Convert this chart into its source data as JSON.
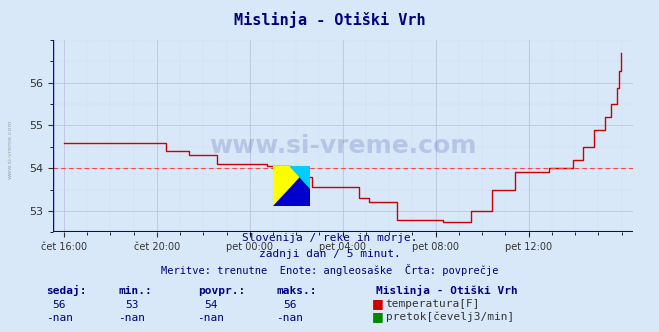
{
  "title": "Mislinja - Otiški Vrh",
  "title_color": "#000080",
  "bg_color": "#d8e8f8",
  "plot_bg_color": "#d8e8f8",
  "line_color": "#cc0000",
  "avg_line_color": "#ff4444",
  "avg_value": 54.0,
  "x_labels": [
    "čet 16:00",
    "čet 20:00",
    "pet 00:00",
    "pet 04:00",
    "pet 08:00",
    "pet 12:00"
  ],
  "x_ticks_norm": [
    0.0,
    0.1667,
    0.3333,
    0.5,
    0.6667,
    0.8333
  ],
  "ylim": [
    52.5,
    57.0
  ],
  "yticks": [
    53,
    54,
    55,
    56
  ],
  "grid_color": "#bbbbdd",
  "axis_color": "#0000cc",
  "watermark_text": "www.si-vreme.com",
  "subtitle1": "Slovenija / reke in morje.",
  "subtitle2": "zadnji dan / 5 minut.",
  "subtitle3": "Meritve: trenutne  Enote: angleosaške  Črta: povprečje",
  "subtitle_color": "#000080",
  "legend_title": "Mislinja - Otiški Vrh",
  "stat_labels": [
    "sedaj:",
    "min.:",
    "povpr.:",
    "maks.:"
  ],
  "stat_values_temp": [
    "56",
    "53",
    "54",
    "56"
  ],
  "stat_values_pretok": [
    "-nan",
    "-nan",
    "-nan",
    "-nan"
  ],
  "temp_color": "#cc0000",
  "pretok_color": "#008800",
  "temp_label": "temperatura[F]",
  "pretok_label": "pretok[čevelj3/min]",
  "left_label": "www.si-vreme.com"
}
